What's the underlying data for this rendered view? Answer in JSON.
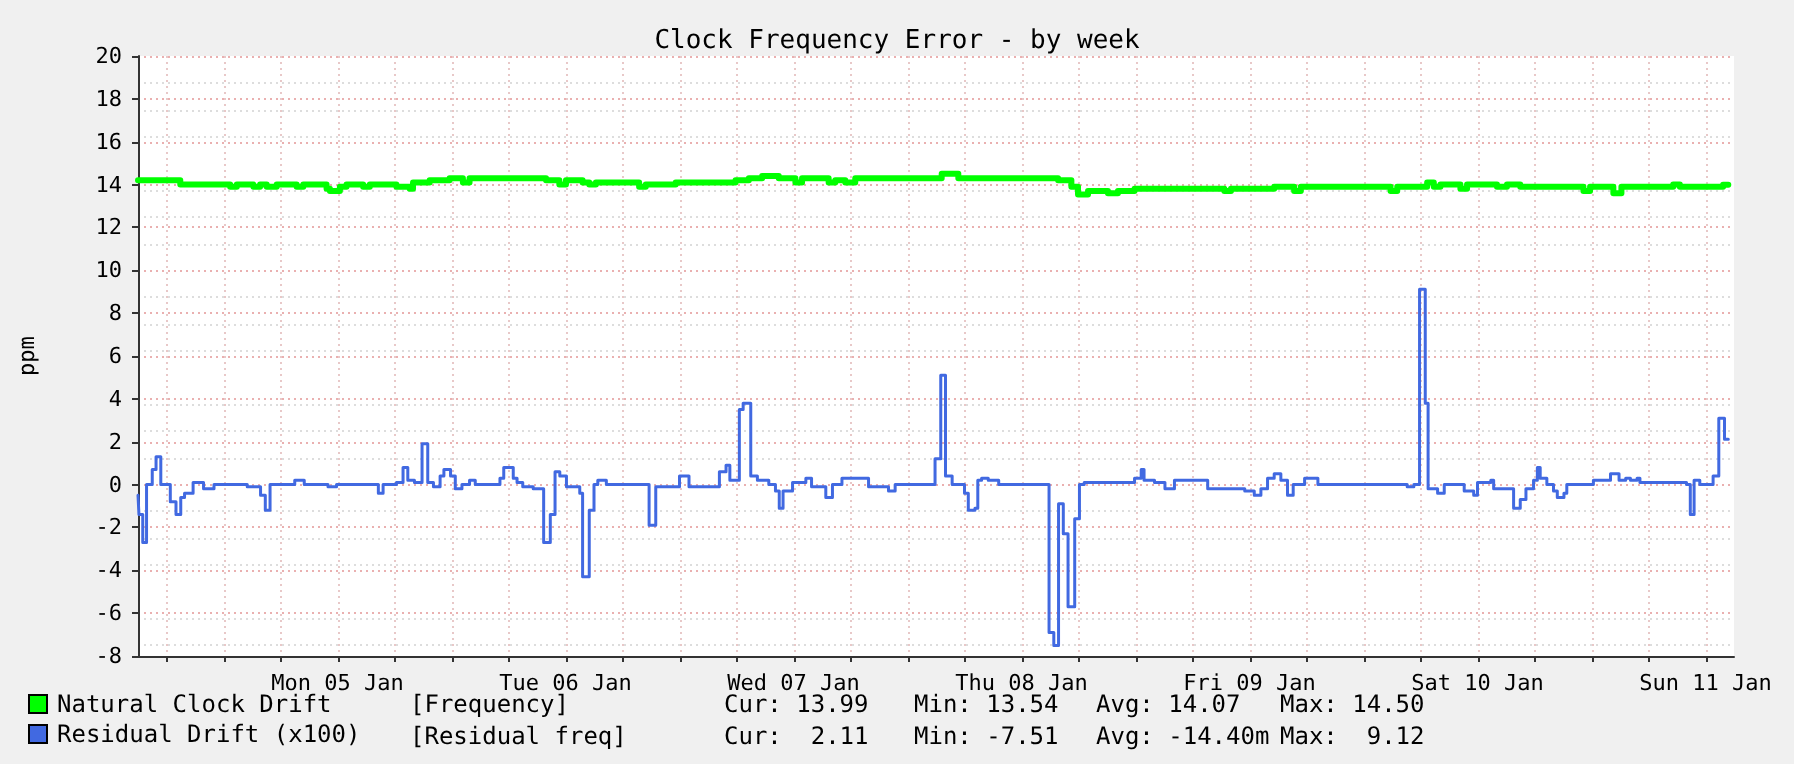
{
  "chart_data": {
    "type": "step",
    "title": "Clock Frequency Error - by week",
    "ylabel": "ppm",
    "xlim": [
      "--01-04T15:00",
      "--01-11T15:00"
    ],
    "xticks": [
      {
        "value": "--01-04T18:00",
        "label": null
      },
      {
        "value": "--01-05T00:00",
        "label": null
      },
      {
        "value": "--01-05T06:00",
        "label": null
      },
      {
        "value": "--01-05T12:00",
        "label": "Mon 05 Jan"
      },
      {
        "value": "--01-05T18:00",
        "label": null
      },
      {
        "value": "--01-06T00:00",
        "label": null
      },
      {
        "value": "--01-06T06:00",
        "label": null
      },
      {
        "value": "--01-06T12:00",
        "label": "Tue 06 Jan"
      },
      {
        "value": "--01-06T18:00",
        "label": null
      },
      {
        "value": "--01-07T00:00",
        "label": null
      },
      {
        "value": "--01-07T06:00",
        "label": null
      },
      {
        "value": "--01-07T12:00",
        "label": "Wed 07 Jan"
      },
      {
        "value": "--01-07T18:00",
        "label": null
      },
      {
        "value": "--01-08T00:00",
        "label": null
      },
      {
        "value": "--01-08T06:00",
        "label": null
      },
      {
        "value": "--01-08T12:00",
        "label": "Thu 08 Jan"
      },
      {
        "value": "--01-08T18:00",
        "label": null
      },
      {
        "value": "--01-09T00:00",
        "label": null
      },
      {
        "value": "--01-09T06:00",
        "label": null
      },
      {
        "value": "--01-09T12:00",
        "label": "Fri 09 Jan"
      },
      {
        "value": "--01-09T18:00",
        "label": null
      },
      {
        "value": "--01-10T00:00",
        "label": null
      },
      {
        "value": "--01-10T06:00",
        "label": null
      },
      {
        "value": "--01-10T12:00",
        "label": "Sat 10 Jan"
      },
      {
        "value": "--01-10T18:00",
        "label": null
      },
      {
        "value": "--01-11T00:00",
        "label": null
      },
      {
        "value": "--01-11T06:00",
        "label": null
      },
      {
        "value": "--01-11T12:00",
        "label": "Sun 11 Jan"
      }
    ],
    "ylim": [
      -8,
      20
    ],
    "yticks": [
      -8,
      -6,
      -4,
      -2,
      0,
      2,
      4,
      6,
      8,
      10,
      12,
      14,
      16,
      18,
      20
    ],
    "grid": true,
    "legend": "bottom left",
    "marker": "none",
    "line_style": "solid",
    "series": [
      {
        "name": "Natural Clock Drift",
        "color": "#00ff00",
        "x": [
          "--01-04T15:00",
          "--01-04T19:27",
          "--01-04T21:12",
          "--01-05T00:42",
          "--01-05T01:24",
          "--01-05T03:09",
          "--01-05T03:51",
          "--01-05T04:33",
          "--01-05T05:36",
          "--01-05T07:42",
          "--01-05T08:24",
          "--01-05T10:51",
          "--01-05T11:12",
          "--01-05T12:15",
          "--01-05T12:57",
          "--01-05T14:42",
          "--01-05T15:24",
          "--01-05T18:12",
          "--01-05T19:36",
          "--01-05T19:57",
          "--01-05T21:42",
          "--01-05T23:48",
          "--01-06T01:12",
          "--01-06T01:54",
          "--01-06T05:45",
          "--01-06T08:33",
          "--01-06T09:15",
          "--01-06T09:57",
          "--01-06T11:21",
          "--01-06T12:03",
          "--01-06T13:48",
          "--01-06T14:30",
          "--01-06T15:12",
          "--01-06T19:45",
          "--01-06T20:27",
          "--01-06T23:36",
          "--01-07T05:54",
          "--01-07T07:18",
          "--01-07T08:42",
          "--01-07T10:27",
          "--01-07T12:12",
          "--01-07T12:54",
          "--01-07T15:42",
          "--01-07T16:24",
          "--01-07T17:27",
          "--01-07T18:30",
          "--01-08T03:36",
          "--01-08T05:21",
          "--01-08T06:03",
          "--01-08T08:09",
          "--01-08T08:51",
          "--01-08T09:54",
          "--01-08T14:48",
          "--01-08T15:51",
          "--01-08T17:15",
          "--01-08T17:57",
          "--01-08T19:00",
          "--01-08T21:06",
          "--01-08T22:09",
          "--01-08T23:54",
          "--01-09T00:36",
          "--01-09T09:21",
          "--01-09T10:03",
          "--01-09T14:36",
          "--01-09T16:42",
          "--01-09T17:24",
          "--01-10T02:51",
          "--01-10T03:33",
          "--01-10T06:42",
          "--01-10T07:24",
          "--01-10T08:06",
          "--01-10T10:12",
          "--01-10T10:54",
          "--01-10T14:03",
          "--01-10T15:06",
          "--01-10T16:30",
          "--01-10T23:09",
          "--01-10T23:51",
          "--01-11T02:18",
          "--01-11T03:09",
          "--01-11T08:36",
          "--01-11T09:18",
          "--01-11T13:51",
          "--01-11T14:24"
        ],
        "values": [
          14.2,
          14.0,
          14.0,
          13.9,
          14.0,
          13.9,
          14.0,
          13.9,
          14.0,
          13.9,
          14.0,
          13.8,
          13.7,
          13.9,
          14.0,
          13.9,
          14.0,
          13.9,
          13.8,
          14.1,
          14.2,
          14.3,
          14.1,
          14.3,
          14.3,
          14.3,
          14.3,
          14.2,
          14.0,
          14.2,
          14.1,
          14.0,
          14.1,
          13.9,
          14.0,
          14.1,
          14.2,
          14.3,
          14.4,
          14.3,
          14.1,
          14.3,
          14.1,
          14.2,
          14.1,
          14.3,
          14.5,
          14.3,
          14.3,
          14.3,
          14.3,
          14.3,
          14.3,
          14.2,
          13.9,
          13.54,
          13.7,
          13.6,
          13.7,
          13.8,
          13.8,
          13.7,
          13.8,
          13.9,
          13.7,
          13.9,
          13.7,
          13.9,
          14.1,
          13.9,
          14.0,
          13.8,
          14.0,
          13.9,
          14.0,
          13.9,
          13.7,
          13.9,
          13.6,
          13.9,
          14.0,
          13.9,
          13.99,
          13.99
        ]
      },
      {
        "name": "Residual Drift (x100)",
        "color": "#4169e1",
        "x": [
          "--01-04T15:00",
          "--01-04T15:06",
          "--01-04T15:30",
          "--01-04T15:54",
          "--01-04T16:30",
          "--01-04T16:54",
          "--01-04T17:24",
          "--01-04T18:24",
          "--01-04T19:00",
          "--01-04T19:30",
          "--01-04T19:54",
          "--01-04T20:48",
          "--01-04T21:54",
          "--01-04T23:00",
          "--01-05T02:30",
          "--01-05T03:54",
          "--01-05T04:24",
          "--01-05T04:54",
          "--01-05T07:30",
          "--01-05T08:30",
          "--01-05T11:00",
          "--01-05T11:54",
          "--01-05T16:18",
          "--01-05T16:48",
          "--01-05T18:12",
          "--01-05T18:54",
          "--01-05T19:24",
          "--01-05T20:06",
          "--01-05T20:54",
          "--01-05T21:30",
          "--01-05T22:06",
          "--01-05T22:48",
          "--01-05T23:12",
          "--01-05T23:54",
          "--01-06T00:24",
          "--01-06T01:06",
          "--01-06T01:54",
          "--01-06T02:30",
          "--01-06T05:06",
          "--01-06T05:30",
          "--01-06T06:30",
          "--01-06T06:54",
          "--01-06T07:30",
          "--01-06T08:36",
          "--01-06T09:42",
          "--01-06T10:24",
          "--01-06T10:54",
          "--01-06T11:24",
          "--01-06T12:06",
          "--01-06T13:30",
          "--01-06T13:48",
          "--01-06T14:30",
          "--01-06T15:00",
          "--01-06T15:24",
          "--01-06T16:18",
          "--01-06T20:48",
          "--01-06T21:30",
          "--01-07T00:00",
          "--01-07T01:00",
          "--01-07T04:12",
          "--01-07T04:54",
          "--01-07T05:18",
          "--01-07T06:18",
          "--01-07T06:42",
          "--01-07T07:30",
          "--01-07T08:12",
          "--01-07T09:24",
          "--01-07T10:06",
          "--01-07T10:30",
          "--01-07T10:54",
          "--01-07T11:54",
          "--01-07T13:18",
          "--01-07T13:54",
          "--01-07T15:24",
          "--01-07T16:06",
          "--01-07T17:06",
          "--01-07T19:54",
          "--01-07T22:00",
          "--01-07T22:42",
          "--01-08T02:54",
          "--01-08T03:30",
          "--01-08T04:00",
          "--01-08T04:42",
          "--01-08T06:00",
          "--01-08T06:24",
          "--01-08T07:06",
          "--01-08T07:24",
          "--01-08T07:48",
          "--01-08T08:30",
          "--01-08T09:36",
          "--01-08T14:54",
          "--01-08T15:24",
          "--01-08T15:54",
          "--01-08T16:24",
          "--01-08T16:54",
          "--01-08T17:36",
          "--01-08T18:06",
          "--01-08T18:36",
          "--01-08T23:54",
          "--01-09T00:36",
          "--01-09T00:54",
          "--01-09T02:00",
          "--01-09T03:06",
          "--01-09T04:06",
          "--01-09T07:36",
          "--01-09T11:30",
          "--01-09T12:30",
          "--01-09T13:12",
          "--01-09T13:54",
          "--01-09T14:36",
          "--01-09T15:18",
          "--01-09T16:00",
          "--01-09T16:36",
          "--01-09T17:48",
          "--01-09T19:12",
          "--01-10T04:36",
          "--01-10T05:18",
          "--01-10T05:54",
          "--01-10T06:30",
          "--01-10T06:48",
          "--01-10T07:48",
          "--01-10T08:30",
          "--01-10T10:36",
          "--01-10T11:36",
          "--01-10T12:00",
          "--01-10T13:24",
          "--01-10T13:42",
          "--01-10T15:48",
          "--01-10T16:30",
          "--01-10T17:06",
          "--01-10T17:54",
          "--01-10T18:18",
          "--01-10T18:36",
          "--01-10T19:18",
          "--01-10T20:00",
          "--01-10T20:24",
          "--01-10T21:06",
          "--01-10T21:24",
          "--01-11T00:12",
          "--01-11T02:00",
          "--01-11T02:54",
          "--01-11T03:36",
          "--01-11T04:06",
          "--01-11T04:48",
          "--01-11T05:06",
          "--01-11T06:54",
          "--01-11T10:00",
          "--01-11T10:24",
          "--01-11T10:48",
          "--01-11T11:24",
          "--01-11T12:48",
          "--01-11T13:24",
          "--01-11T14:00",
          "--01-11T14:24"
        ],
        "values": [
          -0.5,
          -1.4,
          -2.7,
          0,
          0.7,
          1.3,
          0,
          -0.8,
          -1.4,
          -0.6,
          -0.4,
          0.1,
          -0.2,
          0,
          -0.1,
          -0.5,
          -1.2,
          0,
          0.2,
          0,
          -0.1,
          0,
          -0.4,
          0,
          0.1,
          0.8,
          0.2,
          0.1,
          1.9,
          0.1,
          -0.1,
          0.4,
          0.7,
          0.4,
          -0.2,
          0,
          0.2,
          0,
          0.3,
          0.8,
          0.3,
          0.1,
          -0.1,
          -0.2,
          -2.7,
          -1.4,
          0.6,
          0.4,
          -0.1,
          -0.4,
          -4.3,
          -1.2,
          0,
          0.2,
          0,
          -1.9,
          -0.1,
          0.4,
          -0.1,
          0.6,
          0.9,
          0.2,
          3.5,
          3.8,
          0.4,
          0.2,
          0,
          -0.3,
          -1.1,
          -0.3,
          0.1,
          0.3,
          -0.1,
          -0.6,
          0,
          0.3,
          -0.1,
          -0.3,
          0,
          1.2,
          5.1,
          0.4,
          0,
          -0.4,
          -1.2,
          -1.1,
          0.2,
          0.3,
          0.2,
          0,
          -6.9,
          -7.51,
          -0.9,
          -2.3,
          -5.7,
          -1.6,
          0,
          0.1,
          0.3,
          0.7,
          0.2,
          0.1,
          -0.2,
          0.2,
          -0.2,
          -0.3,
          -0.5,
          -0.2,
          0.3,
          0.5,
          0.2,
          -0.5,
          0,
          0.3,
          0,
          -0.1,
          0,
          9.12,
          3.8,
          -0.2,
          -0.4,
          0,
          -0.3,
          -0.5,
          0.1,
          0.2,
          -0.2,
          -1.1,
          -0.7,
          -0.2,
          0.2,
          0.8,
          0.3,
          0,
          -0.3,
          -0.6,
          -0.4,
          0,
          0.2,
          0.5,
          0.2,
          0.3,
          0.2,
          0.3,
          0.1,
          0.1,
          0,
          -1.4,
          0.2,
          0,
          0.4,
          3.1,
          2.11,
          2.11
        ]
      }
    ],
    "annotations": [
      "[Frequency]",
      "Cur: 13.99",
      "Min: 13.54",
      "Avg: 14.07",
      "Max: 14.50",
      "[Residual freq]",
      "Cur:  2.11",
      "Min: -7.51",
      "Avg: -14.40m",
      "Max:  9.12"
    ]
  }
}
